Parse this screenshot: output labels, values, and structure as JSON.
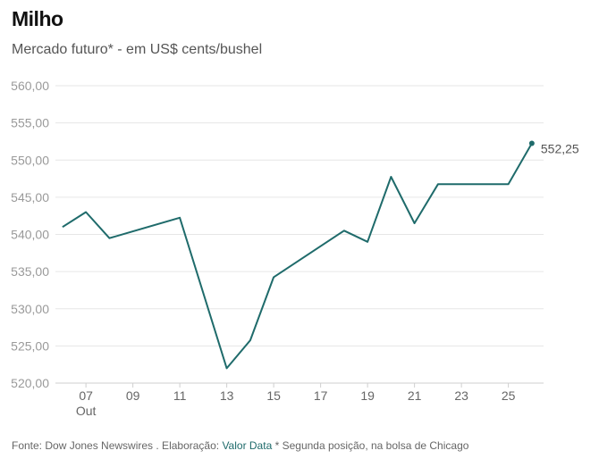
{
  "chart_data": {
    "type": "line",
    "title": "Milho",
    "subtitle": "Mercado futuro* - em US$ cents/bushel",
    "x": [
      6,
      7,
      8,
      11,
      13,
      14,
      15,
      18,
      19,
      20,
      21,
      22,
      25,
      26
    ],
    "values": [
      541.0,
      543.0,
      539.5,
      542.25,
      522.0,
      525.75,
      534.25,
      540.5,
      539.0,
      547.75,
      541.5,
      546.75,
      546.75,
      552.25
    ],
    "xticks": [
      7,
      9,
      11,
      13,
      15,
      17,
      19,
      21,
      23,
      25
    ],
    "xtick_labels": [
      "07",
      "09",
      "11",
      "13",
      "15",
      "17",
      "19",
      "21",
      "23",
      "25"
    ],
    "xsublabel": "Out",
    "xlim": [
      5.7,
      26.5
    ],
    "ylim": [
      520,
      560
    ],
    "yticks": [
      520,
      525,
      530,
      535,
      540,
      545,
      550,
      555,
      560
    ],
    "ytick_labels": [
      "520,00",
      "525,00",
      "530,00",
      "535,00",
      "540,00",
      "545,00",
      "550,00",
      "555,00",
      "560,00"
    ],
    "last_label": "552,25",
    "line_color": "#1f6b6b",
    "xlabel": "",
    "ylabel": ""
  },
  "footer": {
    "source": "Fonte: Dow Jones Newswires . Elaboração: ",
    "link": "Valor Data",
    "note": " * Segunda posição, na bolsa de Chicago"
  }
}
